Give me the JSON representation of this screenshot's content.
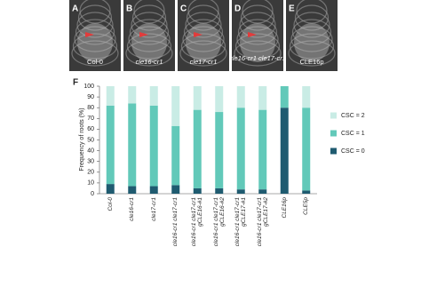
{
  "panels": [
    {
      "letter": "A",
      "label": "Col-0"
    },
    {
      "letter": "B",
      "label": "cle16-cr1"
    },
    {
      "letter": "C",
      "label": "cle17-cr1"
    },
    {
      "letter": "D",
      "label": "cle16-cr1\ncle17-cr1"
    },
    {
      "letter": "E",
      "label": "CLE16p"
    }
  ],
  "chart_data": {
    "type": "stacked_bar",
    "panel_label": "F",
    "y_label": "Frequency of roots (%)",
    "categories": [
      "Col-0",
      "cle16-cr1",
      "cle17-cr1",
      "cle16-cr1 cle17-cr1",
      "cle16-cr1 cle17-cr1\ngCLE16-#1",
      "cle16-cr1 cle17-cr1\ngCLE16-#2",
      "cle16-cr1 cle17-cr1\ngCLE17-#1",
      "cle16-cr1 cle17-cr1\ngCLE17-#2",
      "CLE16p",
      "CLE5p"
    ],
    "series": [
      {
        "name": "CSC = 0",
        "color": "#1f5b70",
        "values": [
          9,
          7,
          7,
          8,
          5,
          5,
          4,
          4,
          80,
          3
        ]
      },
      {
        "name": "CSC = 1",
        "color": "#62c9b9",
        "values": [
          73,
          77,
          75,
          55,
          73,
          71,
          76,
          74,
          20,
          77
        ]
      },
      {
        "name": "CSC = 2",
        "color": "#c9ece5",
        "values": [
          18,
          16,
          18,
          37,
          22,
          24,
          20,
          22,
          0,
          20
        ]
      }
    ],
    "ylim": [
      0,
      100
    ],
    "yticks": [
      0,
      10,
      20,
      30,
      40,
      50,
      60,
      70,
      80,
      90,
      100
    ]
  }
}
